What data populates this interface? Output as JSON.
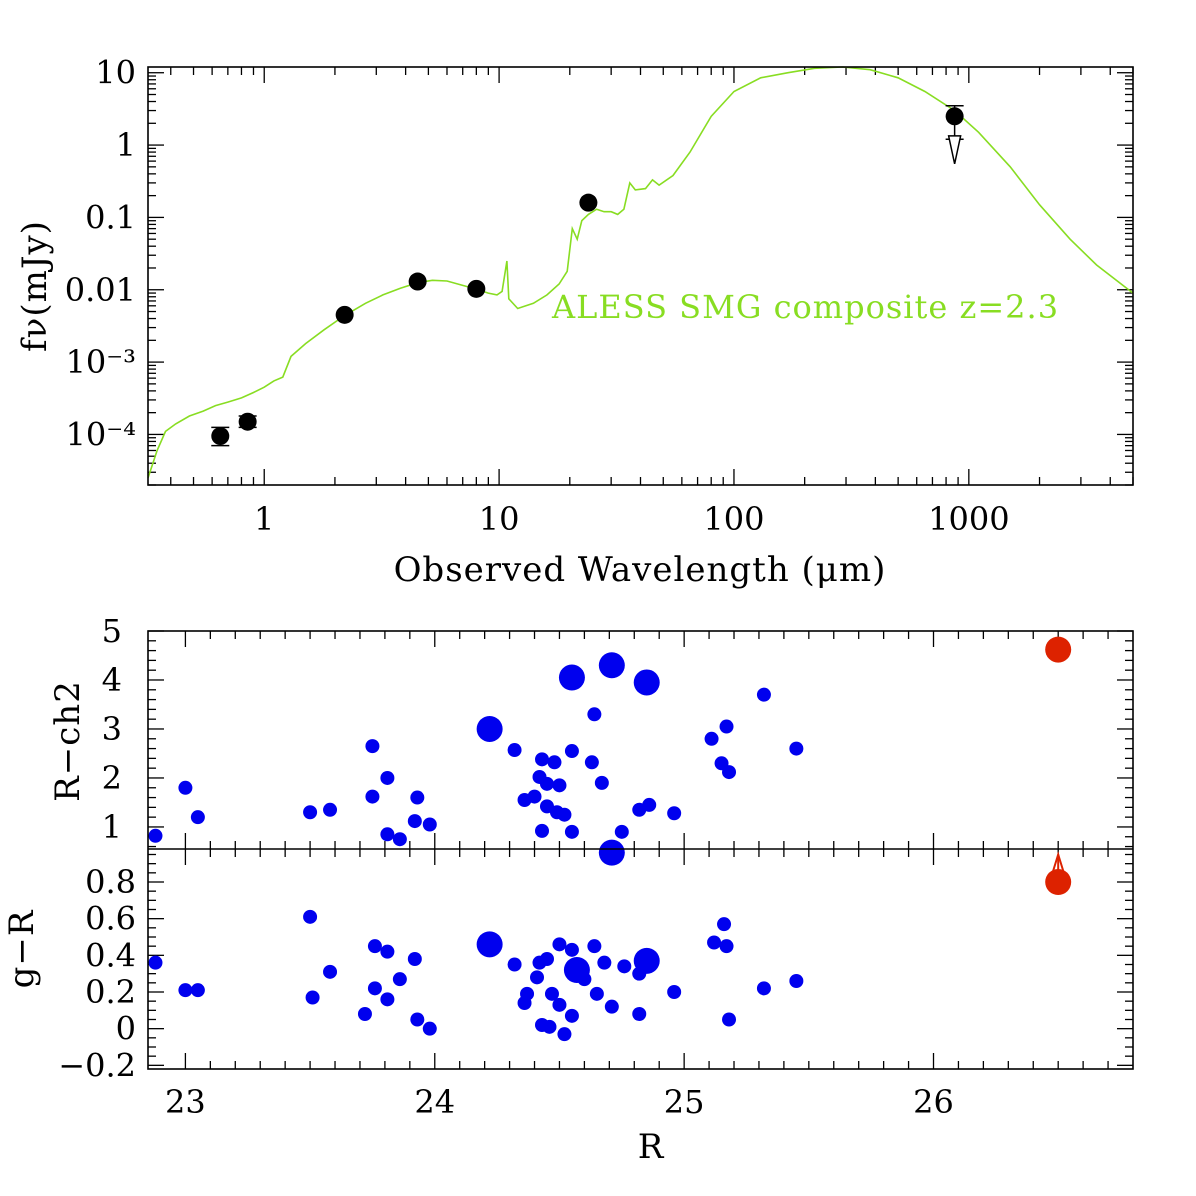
{
  "chart_data": [
    {
      "type": "scatter",
      "panel": "sed",
      "xscale": "log",
      "yscale": "log",
      "xlim": [
        0.32,
        5000
      ],
      "ylim": [
        2e-05,
        12
      ],
      "xlabel": "Observed Wavelength (μm)",
      "ylabel": "fν(mJy)",
      "xticklabels": [
        "1",
        "10",
        "100",
        "1000"
      ],
      "xtickvalues": [
        1,
        10,
        100,
        1000
      ],
      "yticklabels": [
        "10",
        "1",
        "0.1",
        "0.01",
        "10⁻³",
        "10⁻⁴"
      ],
      "ytickvalues": [
        10,
        1,
        0.1,
        0.01,
        0.001,
        0.0001
      ],
      "template_label": "ALESS SMG composite z=2.3",
      "colors": {
        "template": "#88dd22",
        "points": "#000000"
      },
      "points": [
        {
          "x": 0.65,
          "y": 9.5e-05,
          "err": [
            7e-05,
            0.000125
          ]
        },
        {
          "x": 0.85,
          "y": 0.00015,
          "err": [
            0.000125,
            0.00018
          ]
        },
        {
          "x": 2.2,
          "y": 0.0045
        },
        {
          "x": 4.5,
          "y": 0.013
        },
        {
          "x": 8.0,
          "y": 0.0103
        },
        {
          "x": 24,
          "y": 0.16
        }
      ],
      "upper_limits": [
        {
          "x": 870,
          "y": 2.5,
          "err_top": 3.5,
          "arrow_to": 0.55
        }
      ],
      "template": [
        [
          0.32,
          2.5e-05
        ],
        [
          0.35,
          6e-05
        ],
        [
          0.38,
          0.00011
        ],
        [
          0.42,
          0.00014
        ],
        [
          0.48,
          0.00018
        ],
        [
          0.55,
          0.00021
        ],
        [
          0.62,
          0.00025
        ],
        [
          0.7,
          0.00028
        ],
        [
          0.8,
          0.00032
        ],
        [
          0.9,
          0.00038
        ],
        [
          1.0,
          0.00045
        ],
        [
          1.1,
          0.00055
        ],
        [
          1.2,
          0.00062
        ],
        [
          1.3,
          0.0012
        ],
        [
          1.5,
          0.0018
        ],
        [
          1.8,
          0.0028
        ],
        [
          2.2,
          0.0044
        ],
        [
          2.7,
          0.0065
        ],
        [
          3.2,
          0.0085
        ],
        [
          3.8,
          0.0105
        ],
        [
          4.5,
          0.0125
        ],
        [
          5.2,
          0.0135
        ],
        [
          6.0,
          0.0132
        ],
        [
          7.0,
          0.0115
        ],
        [
          8.0,
          0.0102
        ],
        [
          9.0,
          0.009
        ],
        [
          9.8,
          0.0085
        ],
        [
          10.3,
          0.0095
        ],
        [
          10.8,
          0.025
        ],
        [
          11.0,
          0.0075
        ],
        [
          12.0,
          0.0055
        ],
        [
          13.0,
          0.006
        ],
        [
          14.0,
          0.0065
        ],
        [
          16.0,
          0.0085
        ],
        [
          18.0,
          0.012
        ],
        [
          19.5,
          0.018
        ],
        [
          20.5,
          0.07
        ],
        [
          21.5,
          0.05
        ],
        [
          22.5,
          0.09
        ],
        [
          24.0,
          0.11
        ],
        [
          26.0,
          0.13
        ],
        [
          28.0,
          0.12
        ],
        [
          30.0,
          0.12
        ],
        [
          32.0,
          0.11
        ],
        [
          34.0,
          0.13
        ],
        [
          36.0,
          0.3
        ],
        [
          38.0,
          0.24
        ],
        [
          42.0,
          0.25
        ],
        [
          45.0,
          0.33
        ],
        [
          48.0,
          0.28
        ],
        [
          55.0,
          0.38
        ],
        [
          65.0,
          0.8
        ],
        [
          80.0,
          2.5
        ],
        [
          100.0,
          5.5
        ],
        [
          130.0,
          8.5
        ],
        [
          170.0,
          10.0
        ],
        [
          220.0,
          11.5
        ],
        [
          290.0,
          12.0
        ],
        [
          380.0,
          11.0
        ],
        [
          500.0,
          8.5
        ],
        [
          650.0,
          5.5
        ],
        [
          870.0,
          3.0
        ],
        [
          1100.0,
          1.5
        ],
        [
          1500.0,
          0.5
        ],
        [
          2000.0,
          0.15
        ],
        [
          2700.0,
          0.05
        ],
        [
          3500.0,
          0.022
        ],
        [
          5000.0,
          0.009
        ]
      ]
    },
    {
      "type": "scatter",
      "panel": "r-ch2",
      "xlim": [
        22.85,
        26.8
      ],
      "ylim": [
        0.55,
        5.0
      ],
      "ylabel": "R−ch2",
      "yticklabels": [
        "1",
        "2",
        "3",
        "4",
        "5"
      ],
      "ytickvalues": [
        1,
        2,
        3,
        4,
        5
      ],
      "colors": {
        "points": "#0000ee",
        "highlight": "#dd2200"
      },
      "small": [
        [
          22.88,
          0.82
        ],
        [
          23.0,
          1.8
        ],
        [
          23.05,
          1.2
        ],
        [
          23.5,
          1.3
        ],
        [
          23.58,
          1.35
        ],
        [
          23.75,
          2.65
        ],
        [
          23.75,
          1.62
        ],
        [
          23.81,
          2.0
        ],
        [
          23.81,
          0.85
        ],
        [
          23.86,
          0.75
        ],
        [
          23.92,
          1.12
        ],
        [
          23.93,
          1.6
        ],
        [
          23.98,
          1.05
        ],
        [
          24.32,
          2.57
        ],
        [
          24.36,
          1.55
        ],
        [
          24.4,
          1.62
        ],
        [
          24.42,
          2.02
        ],
        [
          24.43,
          2.38
        ],
        [
          24.43,
          0.92
        ],
        [
          24.45,
          1.88
        ],
        [
          24.45,
          1.42
        ],
        [
          24.48,
          2.32
        ],
        [
          24.49,
          1.3
        ],
        [
          24.5,
          1.85
        ],
        [
          24.52,
          1.25
        ],
        [
          24.55,
          2.55
        ],
        [
          24.55,
          0.9
        ],
        [
          24.63,
          2.32
        ],
        [
          24.64,
          3.3
        ],
        [
          24.67,
          1.9
        ],
        [
          24.75,
          0.9
        ],
        [
          24.82,
          1.35
        ],
        [
          24.86,
          1.45
        ],
        [
          24.96,
          1.28
        ],
        [
          25.11,
          2.8
        ],
        [
          25.15,
          2.3
        ],
        [
          25.17,
          3.05
        ],
        [
          25.18,
          2.12
        ],
        [
          25.32,
          3.7
        ],
        [
          25.45,
          2.6
        ]
      ],
      "big": [
        [
          24.22,
          3.0
        ],
        [
          24.55,
          4.05
        ],
        [
          24.71,
          4.3
        ],
        [
          24.85,
          3.95
        ]
      ],
      "highlight": {
        "x": 26.5,
        "y": 4.62
      }
    },
    {
      "type": "scatter",
      "panel": "g-r",
      "xlim": [
        22.85,
        26.8
      ],
      "ylim": [
        -0.22,
        0.98
      ],
      "xlabel": "R",
      "ylabel": "g−R",
      "xticklabels": [
        "23",
        "24",
        "25",
        "26"
      ],
      "xtickvalues": [
        23,
        24,
        25,
        26
      ],
      "yticklabels": [
        "−0.2",
        "0",
        "0.2",
        "0.4",
        "0.6",
        "0.8"
      ],
      "ytickvalues": [
        -0.2,
        0,
        0.2,
        0.4,
        0.6,
        0.8
      ],
      "colors": {
        "points": "#0000ee",
        "highlight": "#dd2200"
      },
      "small": [
        [
          22.88,
          0.36
        ],
        [
          23.0,
          0.21
        ],
        [
          23.05,
          0.21
        ],
        [
          23.5,
          0.61
        ],
        [
          23.51,
          0.17
        ],
        [
          23.58,
          0.31
        ],
        [
          23.72,
          0.08
        ],
        [
          23.76,
          0.45
        ],
        [
          23.76,
          0.22
        ],
        [
          23.81,
          0.42
        ],
        [
          23.81,
          0.16
        ],
        [
          23.86,
          0.27
        ],
        [
          23.92,
          0.38
        ],
        [
          23.93,
          0.05
        ],
        [
          23.98,
          0.0
        ],
        [
          24.32,
          0.35
        ],
        [
          24.36,
          0.14
        ],
        [
          24.37,
          0.19
        ],
        [
          24.41,
          0.28
        ],
        [
          24.42,
          0.36
        ],
        [
          24.43,
          0.02
        ],
        [
          24.45,
          0.38
        ],
        [
          24.46,
          0.01
        ],
        [
          24.47,
          0.19
        ],
        [
          24.5,
          0.13
        ],
        [
          24.5,
          0.46
        ],
        [
          24.52,
          -0.03
        ],
        [
          24.55,
          0.43
        ],
        [
          24.55,
          0.07
        ],
        [
          24.6,
          0.27
        ],
        [
          24.64,
          0.45
        ],
        [
          24.65,
          0.19
        ],
        [
          24.68,
          0.36
        ],
        [
          24.71,
          0.12
        ],
        [
          24.76,
          0.34
        ],
        [
          24.82,
          0.3
        ],
        [
          24.82,
          0.08
        ],
        [
          24.96,
          0.2
        ],
        [
          25.12,
          0.47
        ],
        [
          25.16,
          0.57
        ],
        [
          25.17,
          0.45
        ],
        [
          25.18,
          0.05
        ],
        [
          25.32,
          0.22
        ],
        [
          25.45,
          0.26
        ]
      ],
      "big": [
        [
          24.22,
          0.46
        ],
        [
          24.57,
          0.32
        ],
        [
          24.71,
          0.96
        ],
        [
          24.85,
          0.37
        ]
      ],
      "highlight": {
        "x": 26.5,
        "y": 0.8,
        "arrow_to": 0.95
      }
    }
  ]
}
